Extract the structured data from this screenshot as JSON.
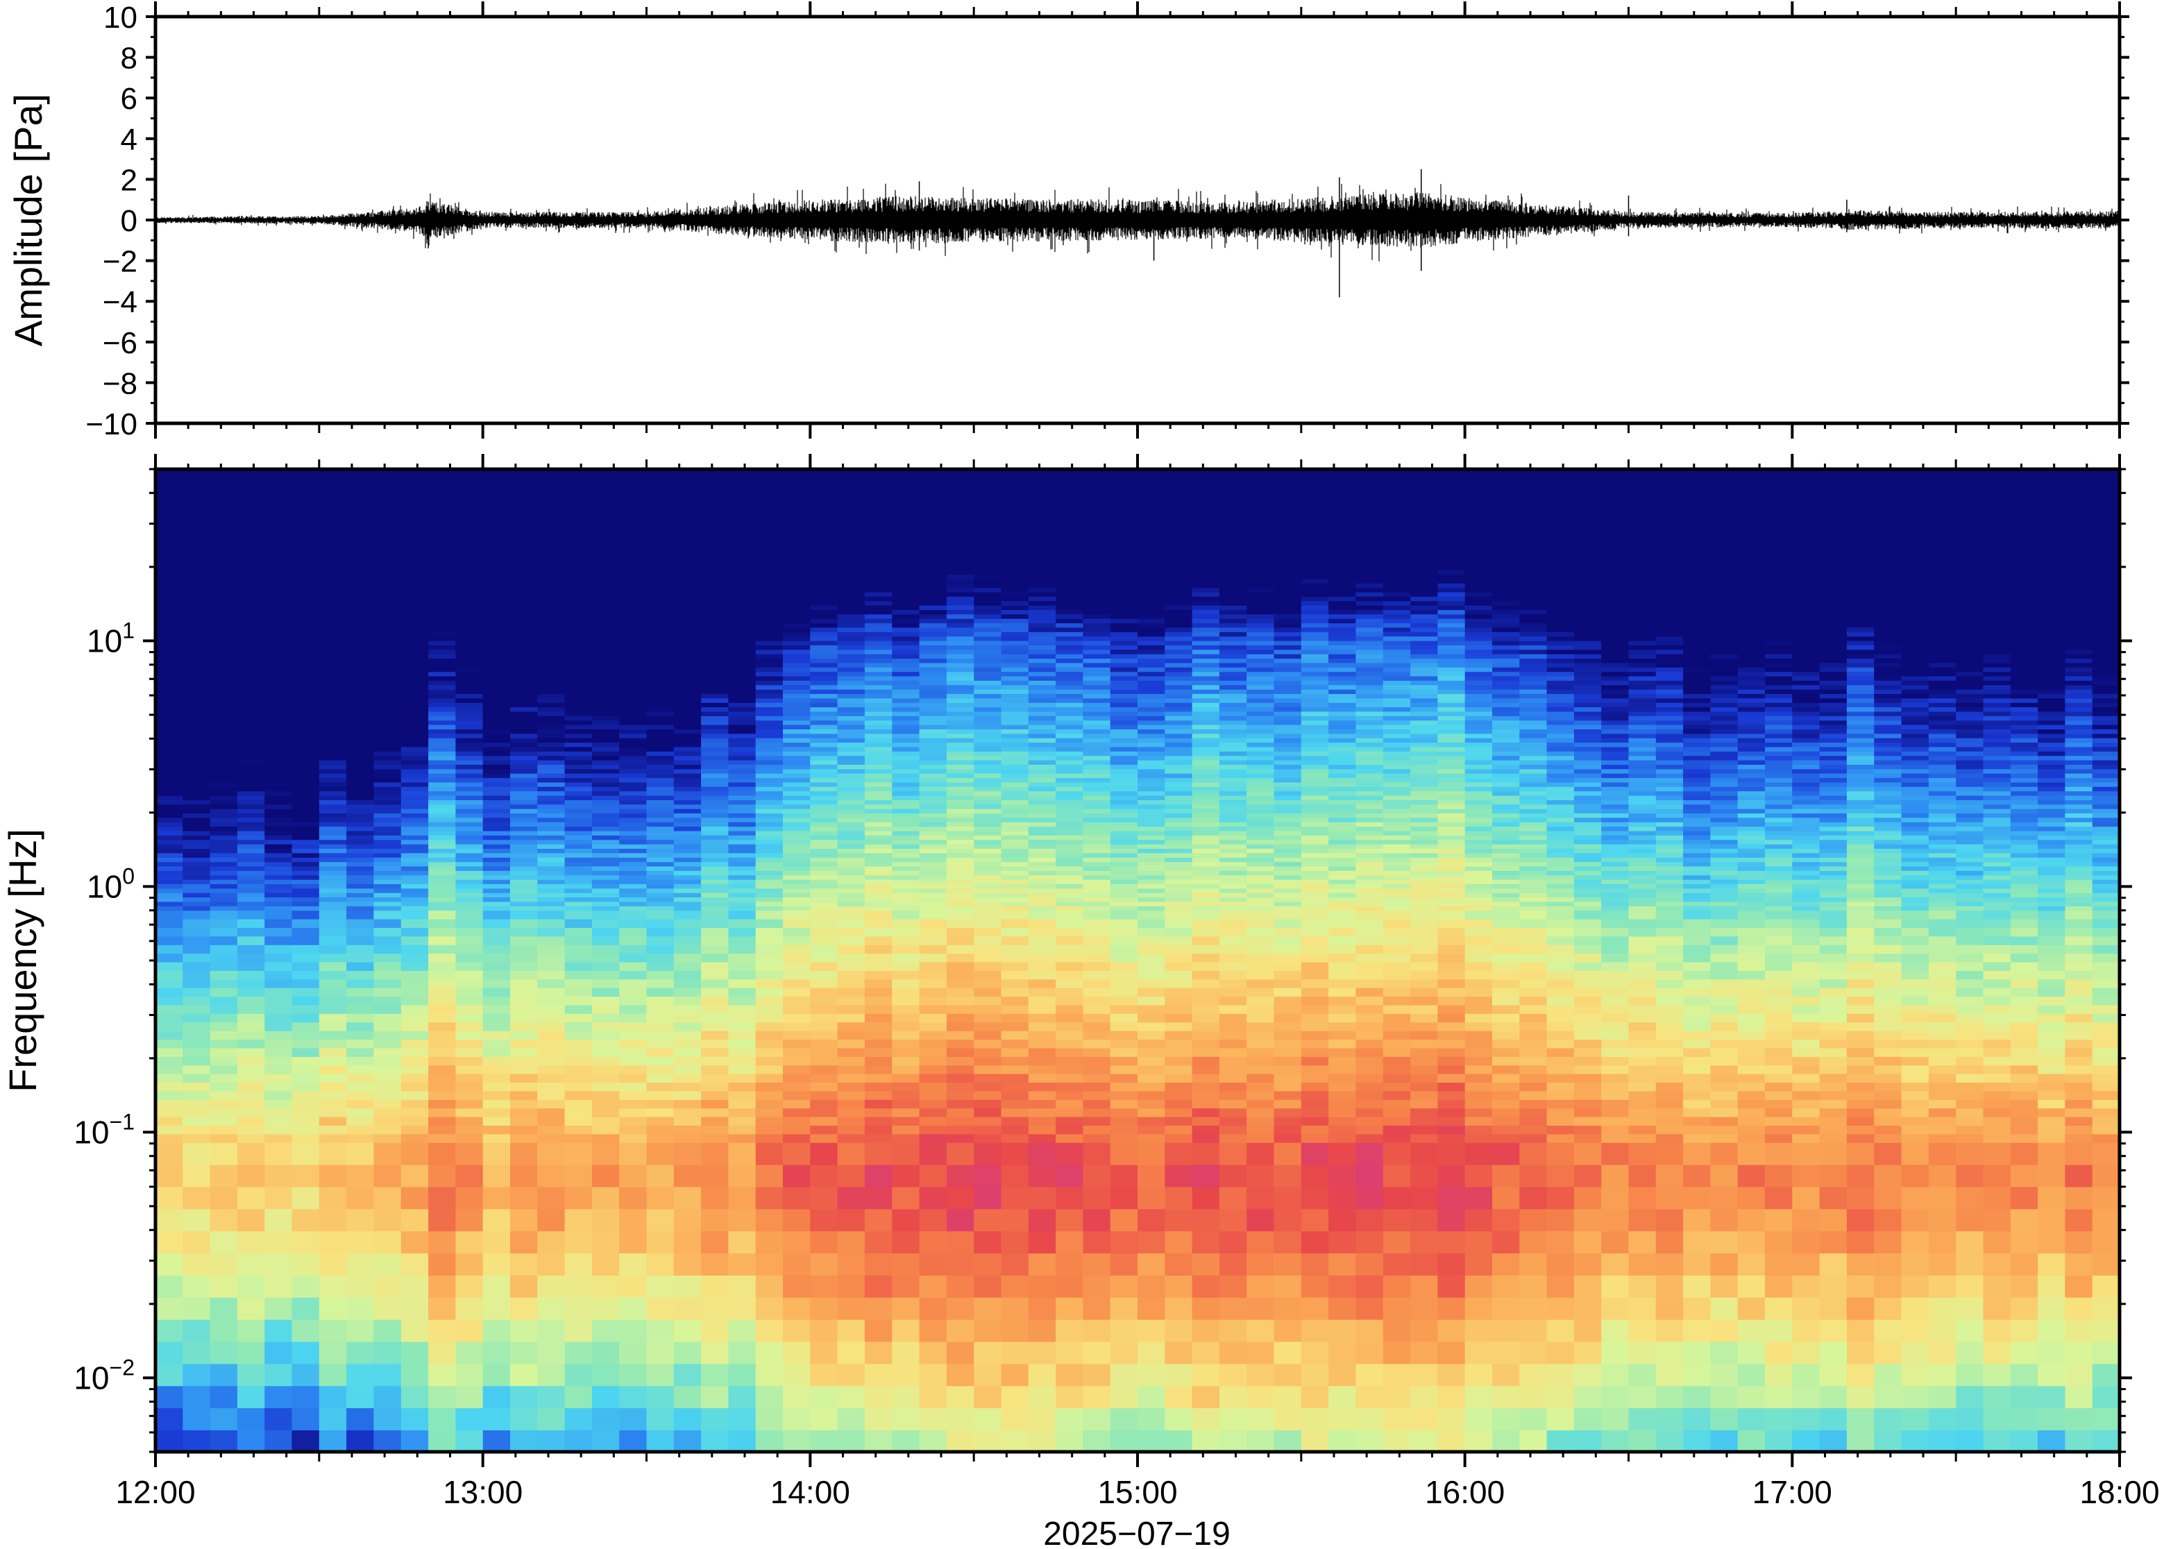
{
  "chart_data": [
    {
      "type": "line",
      "panel": "waveform",
      "title": "",
      "xlabel": "",
      "ylabel": "Amplitude [Pa]",
      "xlim": [
        "12:00",
        "18:00"
      ],
      "ylim": [
        -10,
        10
      ],
      "y_ticks": [
        10,
        8,
        6,
        4,
        2,
        0,
        -2,
        -4,
        -6,
        -8,
        -10
      ],
      "y_tick_labels": [
        "10",
        "8",
        "6",
        "4",
        "2",
        "0",
        "−2",
        "−4",
        "−6",
        "−8",
        "−10"
      ],
      "series_color": "#000000",
      "envelope": {
        "description_time_hours": [
          12.0,
          12.5,
          12.8,
          12.83,
          13.0,
          13.5,
          13.8,
          14.0,
          14.3,
          14.5,
          15.0,
          15.3,
          15.6,
          15.88,
          16.0,
          16.3,
          16.5,
          17.0,
          17.2,
          17.5,
          18.0
        ],
        "amplitude_pa": [
          0.15,
          0.2,
          0.6,
          1.0,
          0.4,
          0.4,
          0.8,
          1.0,
          1.2,
          1.1,
          1.0,
          0.9,
          1.2,
          1.4,
          1.1,
          0.7,
          0.4,
          0.35,
          0.5,
          0.4,
          0.45
        ]
      },
      "spikes": [
        {
          "time": "12:50",
          "min": -1.4,
          "max": 0.9
        },
        {
          "time": "14:20",
          "min": -1.5,
          "max": 1.9
        },
        {
          "time": "15:03",
          "min": -2.0,
          "max": 1.0
        },
        {
          "time": "15:37",
          "min": -3.8,
          "max": 2.1
        },
        {
          "time": "15:52",
          "min": -2.5,
          "max": 2.5
        },
        {
          "time": "16:30",
          "min": -0.8,
          "max": 1.2
        },
        {
          "time": "17:10",
          "min": -0.6,
          "max": 1.0
        }
      ]
    },
    {
      "type": "heatmap",
      "panel": "spectrogram",
      "title": "",
      "xlabel": "2025−07−19",
      "ylabel": "Frequency [Hz]",
      "y_scale": "log",
      "ylim": [
        0.005,
        50
      ],
      "y_ticks": [
        0.01,
        0.1,
        1,
        10
      ],
      "y_tick_labels": [
        {
          "base": "10",
          "exp": "−2"
        },
        {
          "base": "10",
          "exp": "−1"
        },
        {
          "base": "10",
          "exp": "0"
        },
        {
          "base": "10",
          "exp": "1"
        }
      ],
      "x_ticks": [
        "12:00",
        "13:00",
        "14:00",
        "15:00",
        "16:00",
        "17:00",
        "18:00"
      ],
      "colormap": [
        "#0a0a78",
        "#1a3cd6",
        "#2e8cf2",
        "#4dd6f0",
        "#8ee8b8",
        "#d8f59a",
        "#f8e27e",
        "#fbb05a",
        "#f6824a",
        "#e8474a",
        "#d43a8a"
      ],
      "time_hours": [
        12.0,
        12.5,
        12.75,
        12.85,
        13.0,
        13.5,
        13.78,
        14.0,
        14.5,
        15.0,
        15.5,
        15.9,
        16.3,
        16.6,
        17.0,
        17.2,
        17.5,
        18.0
      ],
      "activity": [
        0.05,
        0.15,
        0.3,
        0.55,
        0.35,
        0.4,
        0.45,
        0.75,
        0.8,
        0.78,
        0.85,
        0.9,
        0.7,
        0.5,
        0.45,
        0.6,
        0.45,
        0.5
      ]
    }
  ]
}
